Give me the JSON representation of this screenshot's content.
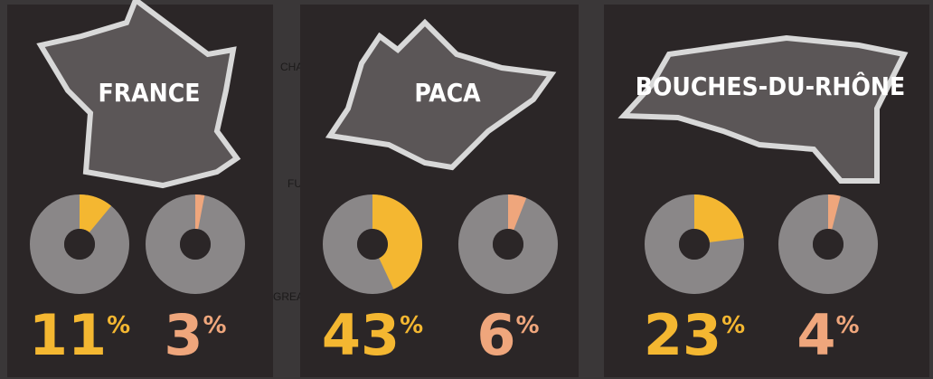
{
  "unit": "%",
  "map_labels": [
    "CHATEAUNEUF",
    "FUVEAU",
    "GREASQUE"
  ],
  "panels": [
    {
      "title": "FRANCE",
      "charts": [
        {
          "type": "pie",
          "values": [
            11
          ],
          "color": "#f4b731"
        },
        {
          "type": "pie",
          "values": [
            3
          ],
          "color": "#efa67c"
        }
      ]
    },
    {
      "title": "PACA",
      "charts": [
        {
          "type": "pie",
          "values": [
            43
          ],
          "color": "#f4b731"
        },
        {
          "type": "pie",
          "values": [
            6
          ],
          "color": "#efa67c"
        }
      ]
    },
    {
      "title": "BOUCHES-DU-RHÔNE",
      "charts": [
        {
          "type": "pie",
          "values": [
            23
          ],
          "color": "#f4b731"
        },
        {
          "type": "pie",
          "values": [
            4
          ],
          "color": "#efa67c"
        }
      ]
    }
  ]
}
